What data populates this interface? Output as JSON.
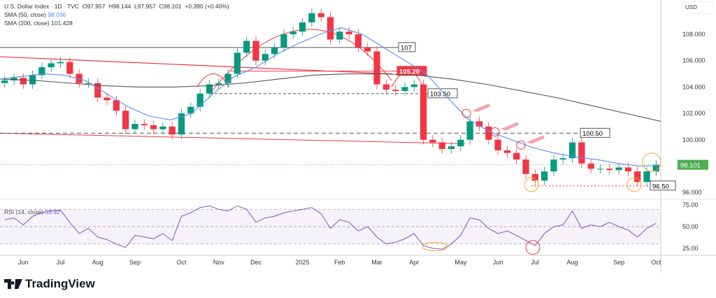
{
  "legend": {
    "symbol": "U.S. Dollar Index · 1D · TVC",
    "open": "O97.957",
    "high": "H98.144",
    "low": "L97.957",
    "close": "C98.101",
    "change": "+0.390 (+0.40%)",
    "sma50_label": "SMA (50, close)",
    "sma50_value": "98.036",
    "sma200_label": "SMA (200, close)",
    "sma200_value": "101.428"
  },
  "rsi_legend": {
    "label": "RSI (14, close)",
    "value": "53.92"
  },
  "currency": "USD",
  "brand": "TradingView",
  "colors": {
    "up": "#089981",
    "down": "#f23645",
    "sma50": "#5b8def",
    "sma200": "#555555",
    "rsi": "#7e57c2",
    "annot": "#f23645",
    "orange": "#f5a623",
    "last": "#4caf50"
  },
  "chart_data": {
    "type": "candlestick",
    "title": "U.S. Dollar Index · 1D · TVC",
    "note": "weekly approximation of daily candles",
    "ylim": [
      95,
      110
    ],
    "yticks": [
      "108.000",
      "106.000",
      "104.000",
      "102.000",
      "100.000",
      "96.000"
    ],
    "ytick_values": [
      108,
      106,
      104,
      102,
      100,
      96
    ],
    "last_price": 98.101,
    "last_price_label": "98.101",
    "xticks": [
      "Jun",
      "Jul",
      "Aug",
      "Sep",
      "Oct",
      "Nov",
      "Dec",
      "2025",
      "Feb",
      "Mar",
      "Apr",
      "May",
      "Jun",
      "Jul",
      "Aug",
      "Sep",
      "Oct"
    ],
    "xtick_week_index": [
      2,
      6,
      10,
      14,
      19,
      23,
      27,
      32,
      36,
      40,
      44,
      49,
      53,
      57,
      61,
      66,
      70
    ],
    "closes": [
      104.5,
      104.7,
      104.2,
      104.9,
      105.5,
      105.8,
      105.9,
      105.0,
      104.3,
      104.3,
      103.2,
      103.0,
      102.2,
      100.8,
      101.2,
      101.1,
      100.8,
      101.0,
      100.4,
      102.0,
      102.5,
      103.5,
      104.2,
      104.3,
      105.0,
      106.6,
      107.5,
      106.0,
      106.5,
      107.0,
      108.0,
      108.2,
      108.9,
      109.6,
      109.3,
      107.6,
      108.2,
      108.0,
      107.0,
      106.7,
      104.2,
      103.8,
      103.7,
      104.0,
      104.2,
      100.0,
      99.8,
      99.3,
      99.5,
      100.0,
      101.4,
      101.0,
      100.0,
      99.2,
      99.0,
      98.5,
      97.4,
      96.9,
      97.6,
      98.5,
      98.6,
      99.8,
      98.2,
      97.8,
      97.8,
      97.7,
      97.9,
      97.6,
      96.8,
      97.6,
      98.1
    ],
    "sma50": [
      104.6,
      104.8,
      105.0,
      104.9,
      104.5,
      103.5,
      102.5,
      101.8,
      101.5,
      102.0,
      103.5,
      104.8,
      105.5,
      106.5,
      107.3,
      108.0,
      108.5,
      108.0,
      107.0,
      106.0,
      105.0,
      103.2,
      101.5,
      100.6,
      100.0,
      99.4,
      99.0,
      98.7,
      98.5,
      98.2,
      98.0,
      98.04
    ],
    "sma200": [
      104.6,
      104.5,
      104.3,
      104.1,
      104.0,
      104.0,
      104.1,
      104.3,
      104.6,
      104.9,
      105.0,
      105.0,
      104.9,
      104.6,
      104.2,
      103.7,
      103.2,
      102.6,
      102.0,
      101.4
    ],
    "levels": [
      {
        "value": 107,
        "label": "107"
      },
      {
        "value": 105.2,
        "label": "105.20"
      },
      {
        "value": 103.5,
        "label": "103.50"
      },
      {
        "value": 100.5,
        "label": "100.50"
      },
      {
        "value": 96.5,
        "label": "96.50"
      }
    ],
    "rsi": {
      "ylim": [
        15,
        80
      ],
      "yticks": [
        "75.00",
        "50.00",
        "25.00"
      ],
      "ytick_values": [
        75,
        50,
        25
      ],
      "values": [
        58,
        60,
        52,
        62,
        66,
        68,
        69,
        55,
        42,
        48,
        38,
        35,
        30,
        26,
        40,
        38,
        36,
        42,
        34,
        62,
        66,
        72,
        74,
        70,
        68,
        74,
        70,
        55,
        60,
        62,
        66,
        68,
        70,
        72,
        65,
        48,
        58,
        55,
        45,
        50,
        38,
        30,
        32,
        36,
        42,
        28,
        25,
        24,
        30,
        40,
        60,
        58,
        48,
        42,
        45,
        40,
        34,
        28,
        42,
        50,
        52,
        68,
        48,
        52,
        50,
        55,
        50,
        46,
        38,
        48,
        53.92
      ]
    }
  }
}
